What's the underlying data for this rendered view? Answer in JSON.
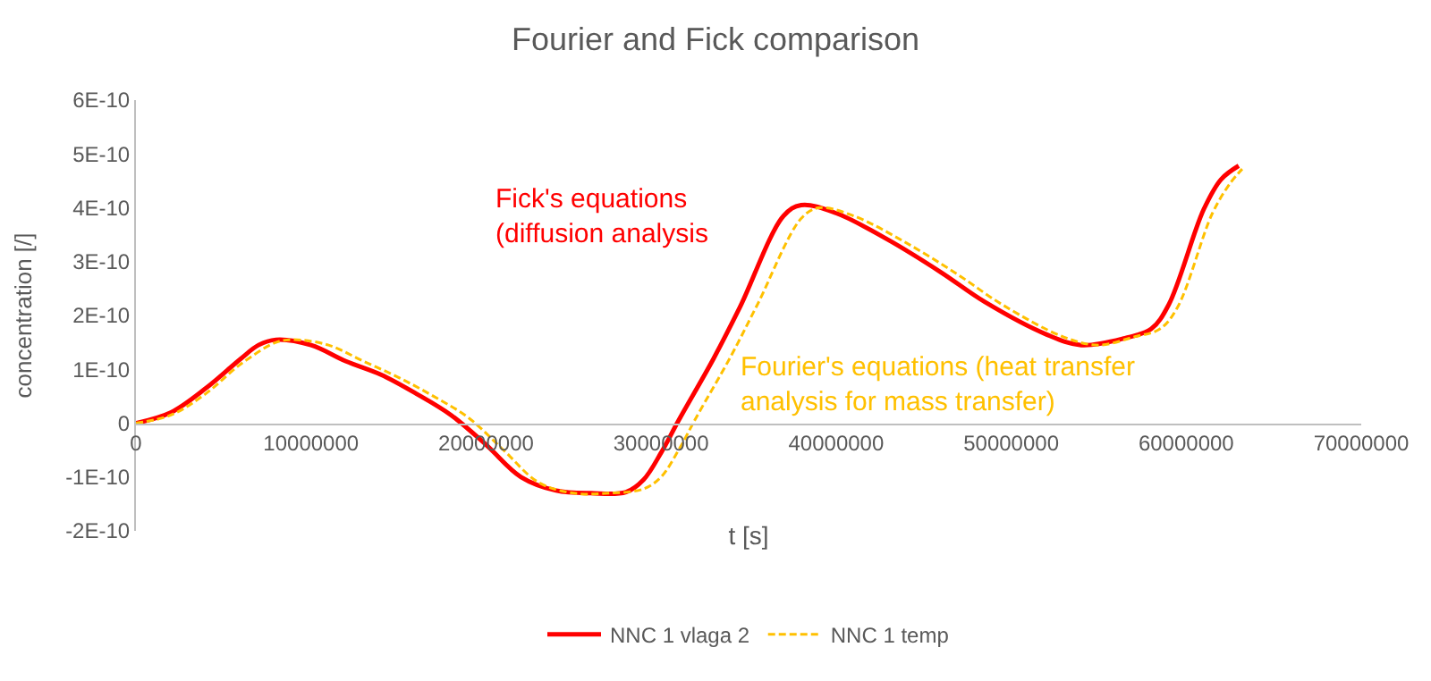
{
  "chart_data": {
    "type": "line",
    "title": "Fourier and Fick comparison",
    "xlabel": "t [s]",
    "ylabel": "concentration [/]",
    "xlim": [
      0,
      70000000
    ],
    "xticks": [
      0,
      10000000,
      20000000,
      30000000,
      40000000,
      50000000,
      60000000,
      70000000
    ],
    "ylim": [
      -2e-10,
      6e-10
    ],
    "yticks": [
      {
        "value": -2e-10,
        "label": "-2E-10"
      },
      {
        "value": -1e-10,
        "label": "-1E-10"
      },
      0,
      {
        "value": 1e-10,
        "label": "1E-10"
      },
      {
        "value": 2e-10,
        "label": "2E-10"
      },
      {
        "value": 3e-10,
        "label": "3E-10"
      },
      {
        "value": 4e-10,
        "label": "4E-10"
      },
      {
        "value": 5e-10,
        "label": "5E-10"
      },
      {
        "value": 6e-10,
        "label": "6E-10"
      }
    ],
    "legend": "bottom",
    "marker": "none",
    "series": [
      {
        "name": "NNC 1 vlaga 2",
        "color": "#ff0000",
        "line_style": "solid",
        "x": [
          0,
          2000000,
          4000000,
          6000000,
          7000000,
          8000000,
          10000000,
          12000000,
          14000000,
          16000000,
          18000000,
          20000000,
          22000000,
          24000000,
          26000000,
          28000000,
          29000000,
          30000000,
          31000000,
          33000000,
          34500000,
          37000000,
          38000000,
          40000000,
          43000000,
          46000000,
          48500000,
          52000000,
          54000000,
          56500000,
          58000000,
          59000000,
          61000000,
          62000000,
          63000000
        ],
        "values": [
          0,
          2e-11,
          6.5e-11,
          1.2e-10,
          1.45e-10,
          1.55e-10,
          1.45e-10,
          1.15e-10,
          9e-11,
          5.5e-11,
          1.5e-11,
          -4e-11,
          -1e-10,
          -1.25e-10,
          -1.3e-10,
          -1.28e-10,
          -1.05e-10,
          -5.5e-11,
          5e-12,
          1.2e-10,
          2.15e-10,
          3.85e-10,
          4.05e-10,
          3.9e-10,
          3.4e-10,
          2.8e-10,
          2.25e-10,
          1.65e-10,
          1.45e-10,
          1.58e-10,
          1.75e-10,
          2.2e-10,
          3.97e-10,
          4.53e-10,
          4.78e-10
        ]
      },
      {
        "name": "NNC 1 temp",
        "color": "#ffc000",
        "line_style": "dashed",
        "x": [
          0,
          2000000,
          4000000,
          6000000,
          8000000,
          9000000,
          11000000,
          13000000,
          15000000,
          17000000,
          19000000,
          21000000,
          23000000,
          25000000,
          27000000,
          29000000,
          30000000,
          31000000,
          32000000,
          34000000,
          35500000,
          38000000,
          39000000,
          41000000,
          44000000,
          47000000,
          49500000,
          53000000,
          55000000,
          57000000,
          58500000,
          59500000,
          61500000,
          62500000,
          63200000
        ],
        "values": [
          0,
          1.5e-11,
          5.5e-11,
          1.1e-10,
          1.5e-10,
          1.55e-10,
          1.45e-10,
          1.15e-10,
          8.5e-11,
          5e-11,
          1e-11,
          -5e-11,
          -1.1e-10,
          -1.3e-10,
          -1.3e-10,
          -1.22e-10,
          -1e-10,
          -5e-11,
          1e-11,
          1.25e-10,
          2.2e-10,
          3.8e-10,
          4e-10,
          3.85e-10,
          3.35e-10,
          2.75e-10,
          2.2e-10,
          1.6e-10,
          1.45e-10,
          1.6e-10,
          1.75e-10,
          2.15e-10,
          3.9e-10,
          4.45e-10,
          4.72e-10
        ]
      }
    ],
    "annotations": [
      "Fick's equations\n(diffusion analysis",
      "Fourier's equations (heat transfer\nanalysis for mass transfer)"
    ]
  }
}
